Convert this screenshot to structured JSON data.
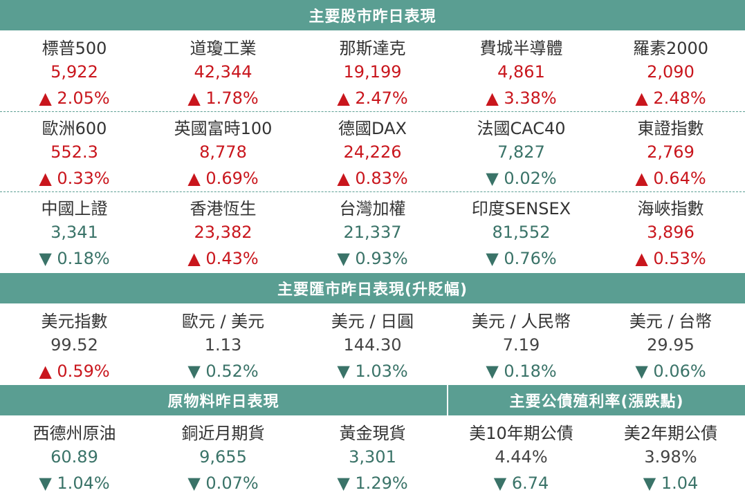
{
  "colors": {
    "header_bg": "#5a9e92",
    "up": "#c9161d",
    "down": "#3a7368",
    "neutral": "#444444"
  },
  "stock_header": "主要股市昨日表現",
  "stocks": [
    [
      {
        "name": "標普500",
        "value": "5,922",
        "change": "▲ 2.05%",
        "dir": "up"
      },
      {
        "name": "道瓊工業",
        "value": "42,344",
        "change": "▲ 1.78%",
        "dir": "up"
      },
      {
        "name": "那斯達克",
        "value": "19,199",
        "change": "▲ 2.47%",
        "dir": "up"
      },
      {
        "name": "費城半導體",
        "value": "4,861",
        "change": "▲ 3.38%",
        "dir": "up"
      },
      {
        "name": "羅素2000",
        "value": "2,090",
        "change": "▲ 2.48%",
        "dir": "up"
      }
    ],
    [
      {
        "name": "歐洲600",
        "value": "552.3",
        "change": "▲ 0.33%",
        "dir": "up"
      },
      {
        "name": "英國富時100",
        "value": "8,778",
        "change": "▲ 0.69%",
        "dir": "up"
      },
      {
        "name": "德國DAX",
        "value": "24,226",
        "change": "▲ 0.83%",
        "dir": "up"
      },
      {
        "name": "法國CAC40",
        "value": "7,827",
        "change": "▼ 0.02%",
        "dir": "down"
      },
      {
        "name": "東證指數",
        "value": "2,769",
        "change": "▲ 0.64%",
        "dir": "up"
      }
    ],
    [
      {
        "name": "中國上證",
        "value": "3,341",
        "change": "▼ 0.18%",
        "dir": "down"
      },
      {
        "name": "香港恆生",
        "value": "23,382",
        "change": "▲ 0.43%",
        "dir": "up"
      },
      {
        "name": "台灣加權",
        "value": "21,337",
        "change": "▼ 0.93%",
        "dir": "down"
      },
      {
        "name": "印度SENSEX",
        "value": "81,552",
        "change": "▼ 0.76%",
        "dir": "down"
      },
      {
        "name": "海峽指數",
        "value": "3,896",
        "change": "▲ 0.53%",
        "dir": "up"
      }
    ]
  ],
  "fx_header": "主要匯市昨日表現(升貶幅)",
  "fx": [
    {
      "name": "美元指數",
      "value": "99.52",
      "change": "▲ 0.59%",
      "dir": "up",
      "value_dir": "neutral"
    },
    {
      "name": "歐元 / 美元",
      "value": "1.13",
      "change": "▼ 0.52%",
      "dir": "down",
      "value_dir": "neutral"
    },
    {
      "name": "美元 / 日圓",
      "value": "144.30",
      "change": "▼ 1.03%",
      "dir": "down",
      "value_dir": "neutral"
    },
    {
      "name": "美元 / 人民幣",
      "value": "7.19",
      "change": "▼ 0.18%",
      "dir": "down",
      "value_dir": "neutral"
    },
    {
      "name": "美元 / 台幣",
      "value": "29.95",
      "change": "▼ 0.06%",
      "dir": "down",
      "value_dir": "neutral"
    }
  ],
  "commodity_header": "原物料昨日表現",
  "bond_header": "主要公債殖利率(漲跌點)",
  "bottom": [
    {
      "name": "西德州原油",
      "value": "60.89",
      "change": "▼ 1.04%",
      "dir": "down",
      "value_dir": "down"
    },
    {
      "name": "銅近月期貨",
      "value": "9,655",
      "change": "▼ 0.07%",
      "dir": "down",
      "value_dir": "down"
    },
    {
      "name": "黃金現貨",
      "value": "3,301",
      "change": "▼ 1.29%",
      "dir": "down",
      "value_dir": "down"
    },
    {
      "name": "美10年期公債",
      "value": "4.44%",
      "change": "▼ 6.74",
      "dir": "down",
      "value_dir": "neutral"
    },
    {
      "name": "美2年期公債",
      "value": "3.98%",
      "change": "▼ 1.04",
      "dir": "down",
      "value_dir": "neutral"
    }
  ]
}
